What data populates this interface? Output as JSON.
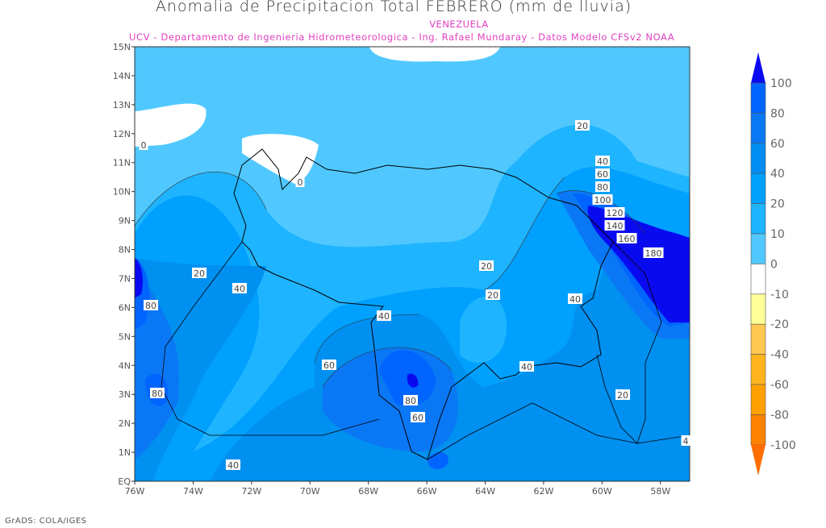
{
  "title": "Anomalia de Precipitacion Total FEBRERO (mm de lluvia)",
  "subtitle_region": "VENEZUELA",
  "subtitle_credits": "UCV - Departamento de Ingenieria Hidrometeorologica - Ing. Rafael Mundaray - Datos Modelo CFSv2 NOAA",
  "footer": "GrADS: COLA/IGES",
  "map": {
    "lon_range": [
      -76,
      -57
    ],
    "lat_range": [
      0,
      15
    ],
    "lon_labels": [
      "76W",
      "74W",
      "72W",
      "70W",
      "68W",
      "66W",
      "64W",
      "62W",
      "60W",
      "58W"
    ],
    "lat_labels": [
      "EQ",
      "1N",
      "2N",
      "3N",
      "4N",
      "5N",
      "6N",
      "7N",
      "8N",
      "9N",
      "10N",
      "11N",
      "12N",
      "13N",
      "14N",
      "15N"
    ],
    "contour_labels": [
      "20",
      "40",
      "60",
      "80",
      "100",
      "120",
      "140",
      "160",
      "180",
      "20",
      "20",
      "40",
      "40",
      "60",
      "40",
      "80",
      "60",
      "20",
      "80",
      "80",
      "40",
      "20",
      "40",
      "0",
      "0",
      "4"
    ]
  },
  "colorbar": {
    "labels": [
      "100",
      "80",
      "60",
      "40",
      "20",
      "10",
      "0",
      "-10",
      "-20",
      "-40",
      "-60",
      "-80",
      "-100"
    ],
    "colors": [
      "#0a0af0",
      "#0064ff",
      "#0a78f5",
      "#008cf0",
      "#00a0ff",
      "#1eb4ff",
      "#50c8ff",
      "#ffffff",
      "#ffff96",
      "#ffc850",
      "#ffb41e",
      "#ffa000",
      "#ff8200",
      "#ff6e00"
    ]
  }
}
